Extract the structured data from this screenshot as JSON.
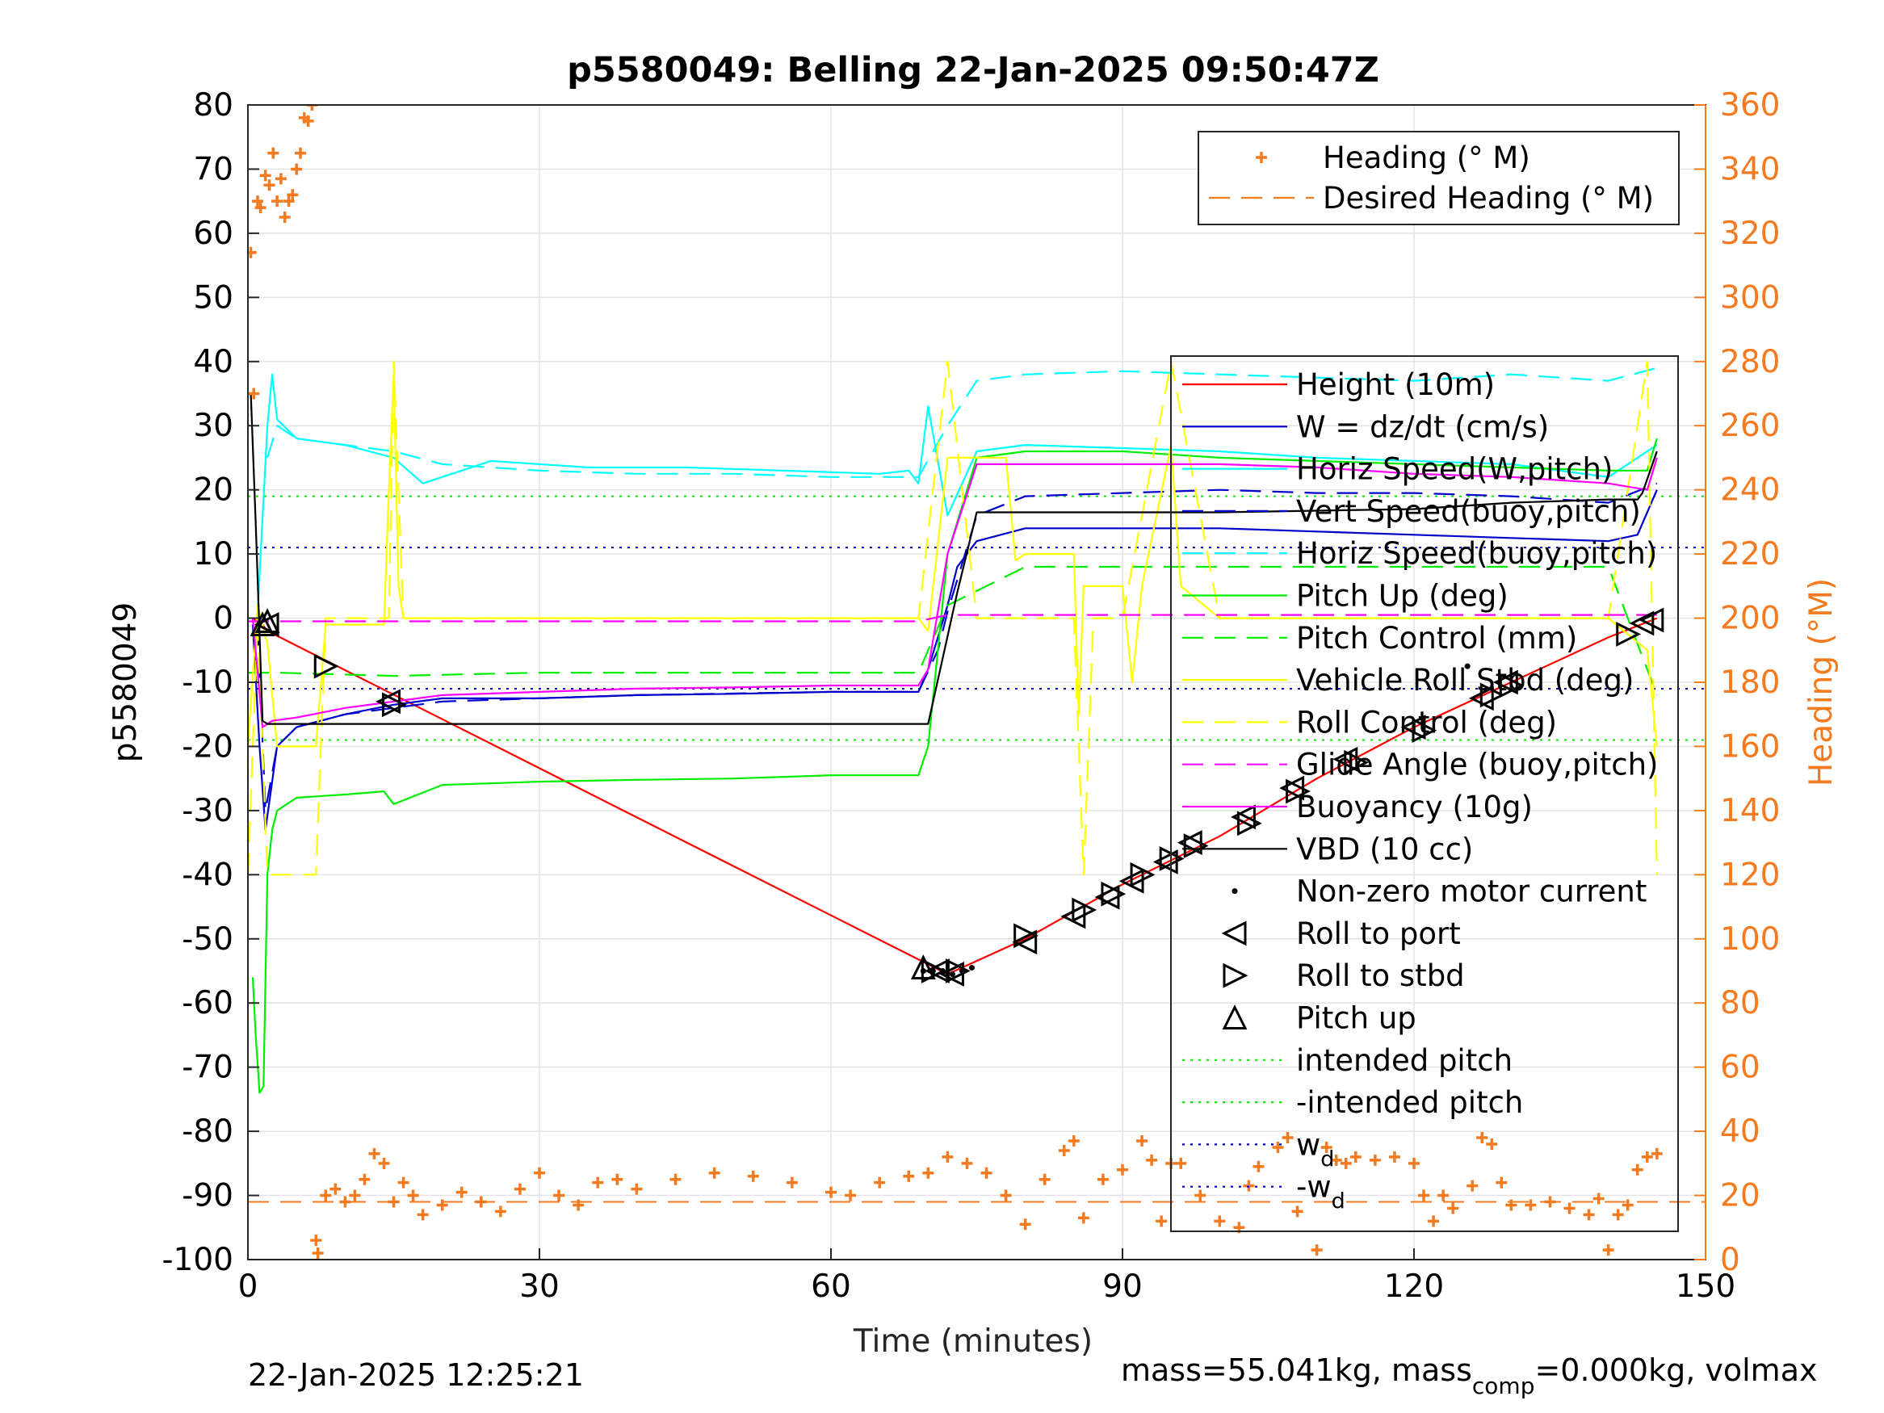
{
  "chart_data": {
    "type": "line",
    "title": "p5580049: Belling 22-Jan-2025 09:50:47Z",
    "xlabel": "Time (minutes)",
    "ylabel": "p5580049",
    "ylabel_right": "Heading (°M)",
    "xlim": [
      0,
      150
    ],
    "ylim": [
      -100,
      80
    ],
    "ylim_right": [
      0,
      360
    ],
    "xticks": [
      0,
      30,
      60,
      90,
      120,
      150
    ],
    "yticks": [
      -100,
      -90,
      -80,
      -70,
      -60,
      -50,
      -40,
      -30,
      -20,
      -10,
      0,
      10,
      20,
      30,
      40,
      50,
      60,
      70,
      80
    ],
    "yticks_right": [
      0,
      20,
      40,
      60,
      80,
      100,
      120,
      140,
      160,
      180,
      200,
      220,
      240,
      260,
      280,
      300,
      320,
      340,
      360
    ],
    "grid": true,
    "footer_left": "22-Jan-2025 12:25:21",
    "footer_right": "mass=55.041kg, mass",
    "footer_right_sub": "comp",
    "footer_right_tail": "=0.000kg, volmax",
    "legend_top": {
      "placement": "top-right",
      "items": [
        {
          "label": "Heading (° M)",
          "color": "#f47a1f",
          "style": "plus"
        },
        {
          "label": "Desired Heading (° M)",
          "color": "#f47a1f",
          "style": "dash"
        }
      ]
    },
    "legend_main": {
      "placement": "right",
      "items": [
        {
          "label": "Height (10m)",
          "color": "#ff0000",
          "style": "solid"
        },
        {
          "label": "W = dz/dt (cm/s)",
          "color": "#0000cc",
          "style": "solid"
        },
        {
          "label": "Horiz Speed(W,pitch)",
          "color": "#00ffff",
          "style": "solid"
        },
        {
          "label": "Vert Speed(buoy,pitch)",
          "color": "#0000cc",
          "style": "dash"
        },
        {
          "label": "Horiz Speed(buoy,pitch)",
          "color": "#00ffff",
          "style": "dash"
        },
        {
          "label": "Pitch Up (deg)",
          "color": "#00ee00",
          "style": "solid"
        },
        {
          "label": "Pitch Control (mm)",
          "color": "#00ee00",
          "style": "dash"
        },
        {
          "label": "Vehicle Roll Stbd (deg)",
          "color": "#ffff00",
          "style": "solid"
        },
        {
          "label": "Roll Control (deg)",
          "color": "#ffff00",
          "style": "dash"
        },
        {
          "label": "Glide Angle (buoy,pitch)",
          "color": "#ff00ff",
          "style": "dash"
        },
        {
          "label": "Buoyancy (10g)",
          "color": "#ff00ff",
          "style": "solid"
        },
        {
          "label": "VBD (10 cc)",
          "color": "#000000",
          "style": "solid"
        },
        {
          "label": "Non-zero motor current",
          "color": "#000000",
          "style": "dot"
        },
        {
          "label": "Roll to port",
          "color": "#000000",
          "style": "tri-left"
        },
        {
          "label": "Roll to stbd",
          "color": "#000000",
          "style": "tri-right"
        },
        {
          "label": "Pitch up",
          "color": "#000000",
          "style": "tri-up"
        },
        {
          "label": "intended pitch",
          "color": "#00ee00",
          "style": "dotted"
        },
        {
          "label": "-intended pitch",
          "color": "#00ee00",
          "style": "dotted"
        },
        {
          "label": "w",
          "sub": "d",
          "color": "#0000cc",
          "style": "dotted"
        },
        {
          "label": "-w",
          "sub": "d",
          "color": "#0000cc",
          "style": "dotted"
        }
      ]
    },
    "series": [
      {
        "name": "Height (10m)",
        "color": "#ff0000",
        "style": "solid",
        "x": [
          0.5,
          1.5,
          2,
          72,
          80,
          90,
          100,
          110,
          120,
          130,
          140,
          145
        ],
        "y": [
          0,
          -1,
          -2,
          -55.5,
          -50,
          -41.5,
          -34,
          -25,
          -17,
          -10,
          -3,
          0
        ]
      },
      {
        "name": "W = dz/dt (cm/s)",
        "color": "#0000cc",
        "style": "solid",
        "x": [
          0.5,
          1.2,
          1.8,
          3,
          5,
          10,
          15,
          20,
          30,
          40,
          50,
          60,
          69,
          70,
          71,
          72,
          73,
          75,
          80,
          90,
          100,
          110,
          120,
          130,
          140,
          143,
          145
        ],
        "y": [
          -1,
          -20,
          -33,
          -20,
          -17,
          -15,
          -13.5,
          -12.5,
          -12.5,
          -12,
          -11.8,
          -11.5,
          -11.5,
          -8,
          -3,
          2,
          8,
          12,
          14,
          14,
          14,
          13.5,
          13,
          12.5,
          12,
          13,
          20
        ]
      },
      {
        "name": "Horiz Speed(W,pitch)",
        "color": "#00ffff",
        "style": "solid",
        "x": [
          1,
          2,
          2.5,
          3,
          5,
          10,
          15,
          18,
          25,
          35,
          45,
          55,
          65,
          68,
          69,
          70,
          72,
          75,
          80,
          90,
          100,
          110,
          120,
          130,
          140,
          145
        ],
        "y": [
          1,
          30,
          38,
          31,
          28,
          27,
          25,
          21,
          24.5,
          23.5,
          23.5,
          23,
          22.5,
          23,
          21,
          33,
          16,
          26,
          27,
          26.5,
          26,
          25,
          24.5,
          24,
          22,
          27
        ]
      },
      {
        "name": "Vert Speed(buoy,pitch)",
        "color": "#0000cc",
        "style": "dash",
        "x": [
          1,
          1.8,
          3,
          5,
          10,
          20,
          40,
          60,
          69,
          71,
          72,
          75,
          80,
          90,
          100,
          110,
          120,
          130,
          140,
          145
        ],
        "y": [
          -1,
          -30,
          -20,
          -17,
          -15,
          -13,
          -12,
          -11.5,
          -11.5,
          -5,
          1,
          16,
          19,
          19.5,
          20,
          19.5,
          19.5,
          19,
          18,
          21
        ]
      },
      {
        "name": "Horiz Speed(buoy,pitch)",
        "color": "#00ffff",
        "style": "dash",
        "x": [
          2,
          3,
          5,
          10,
          15,
          20,
          30,
          40,
          50,
          60,
          69,
          72,
          75,
          80,
          90,
          100,
          110,
          120,
          130,
          140,
          145
        ],
        "y": [
          25,
          30,
          28,
          27,
          26,
          24,
          23,
          22.5,
          22.5,
          22,
          22,
          30,
          37,
          38,
          38.5,
          38,
          37.5,
          37,
          38,
          37,
          39
        ]
      },
      {
        "name": "Pitch Up (deg)",
        "color": "#00ee00",
        "style": "solid",
        "x": [
          0.5,
          0.8,
          1.2,
          1.6,
          2,
          2.5,
          3,
          5,
          10,
          14,
          15,
          20,
          30,
          40,
          50,
          60,
          69,
          70,
          71,
          72,
          74,
          75,
          80,
          90,
          100,
          110,
          120,
          130,
          140,
          144,
          145
        ],
        "y": [
          -56,
          -65,
          -74,
          -73,
          -40,
          -33,
          -30,
          -28,
          -27.5,
          -27,
          -29,
          -26,
          -25.5,
          -25.2,
          -25,
          -24.5,
          -24.5,
          -20,
          -5,
          10,
          20,
          25,
          26,
          26,
          25,
          24.5,
          24,
          23.5,
          23,
          23,
          28
        ]
      },
      {
        "name": "Pitch Control (mm)",
        "color": "#00ee00",
        "style": "dash",
        "x": [
          0,
          3,
          15,
          30,
          60,
          69,
          72,
          80,
          90,
          100,
          110,
          120,
          130,
          140,
          145
        ],
        "y": [
          -8.5,
          -8.5,
          -9,
          -8.5,
          -8.5,
          -8.5,
          2,
          8,
          8,
          8,
          8,
          8,
          8,
          8,
          -12
        ]
      },
      {
        "name": "Vehicle Roll Stbd (deg)",
        "color": "#ffff00",
        "style": "solid",
        "x": [
          0,
          1,
          2,
          3,
          5,
          7,
          8,
          14,
          14.5,
          15,
          15.5,
          16,
          20,
          40,
          60,
          69,
          70,
          72,
          78,
          79,
          80,
          85,
          85.5,
          86,
          90,
          91,
          92,
          95,
          96,
          100,
          105,
          110,
          120,
          130,
          140,
          144,
          145
        ],
        "y": [
          -20,
          2,
          -4,
          -20,
          -20,
          -20,
          -1,
          -1,
          20,
          38,
          5,
          0,
          0,
          0,
          0,
          0,
          -2,
          25,
          25,
          9,
          10,
          10,
          -15,
          5,
          5,
          -10,
          5,
          27,
          5,
          0,
          0,
          0,
          0,
          0,
          0,
          -5,
          -20
        ]
      },
      {
        "name": "Roll Control (deg)",
        "color": "#ffff00",
        "style": "dash",
        "x": [
          0,
          1,
          2,
          3,
          7,
          8,
          14.5,
          15,
          16,
          20,
          60,
          69,
          72,
          75,
          85,
          86,
          87,
          90,
          95,
          100,
          110,
          120,
          130,
          140,
          144,
          145
        ],
        "y": [
          -40,
          0,
          -40,
          -40,
          -40,
          0,
          0,
          40,
          0,
          0,
          0,
          0,
          40,
          0,
          0,
          -40,
          0,
          0,
          40,
          0,
          0,
          0,
          0,
          0,
          40,
          -40
        ]
      },
      {
        "name": "Glide Angle (buoy,pitch)",
        "color": "#ff00ff",
        "style": "dash",
        "x": [
          0,
          30,
          60,
          69,
          72,
          80,
          100,
          120,
          140,
          145
        ],
        "y": [
          -0.5,
          -0.5,
          -0.5,
          -0.5,
          0.5,
          0.5,
          0.5,
          0.5,
          0.5,
          0.5
        ]
      },
      {
        "name": "Buoyancy (10g)",
        "color": "#ff00ff",
        "style": "solid",
        "x": [
          0.5,
          1.5,
          2.5,
          5,
          10,
          20,
          30,
          40,
          50,
          60,
          69,
          70,
          72,
          75,
          80,
          90,
          100,
          110,
          120,
          130,
          140,
          144,
          145
        ],
        "y": [
          0,
          -17,
          -16,
          -15.5,
          -14,
          -12,
          -11.5,
          -11,
          -10.8,
          -10.5,
          -10.5,
          -8,
          10,
          24,
          24,
          24,
          24,
          23.5,
          22.5,
          22,
          21,
          20,
          25
        ]
      },
      {
        "name": "VBD (10 cc)",
        "color": "#000000",
        "style": "solid",
        "x": [
          0.3,
          0.8,
          1.5,
          2,
          20,
          40,
          60,
          69,
          70,
          73,
          75,
          80,
          100,
          120,
          130,
          140,
          143,
          143.5,
          145
        ],
        "y": [
          35,
          15,
          -16,
          -16.5,
          -16.5,
          -16.5,
          -16.5,
          -16.5,
          -16.5,
          4,
          16.5,
          16.5,
          16.5,
          17,
          18,
          18.5,
          18.5,
          19.5,
          26
        ]
      }
    ],
    "wd": 11,
    "intended_pitch": 19,
    "desired_heading": 18,
    "heading": {
      "name": "Heading (° M)",
      "x": [
        0.3,
        0.6,
        1,
        1.3,
        1.8,
        2.2,
        2.6,
        3,
        3.4,
        3.8,
        4.2,
        4.6,
        5,
        5.4,
        5.8,
        6.2,
        6.6,
        7,
        7.2,
        8,
        9,
        10,
        11,
        12,
        13,
        14,
        15,
        16,
        17,
        18,
        20,
        22,
        24,
        26,
        28,
        30,
        32,
        34,
        36,
        38,
        40,
        44,
        48,
        52,
        56,
        60,
        62,
        65,
        68,
        70,
        72,
        74,
        76,
        78,
        80,
        82,
        84,
        85,
        86,
        88,
        90,
        92,
        93,
        94,
        95,
        96,
        98,
        100,
        102,
        103,
        104,
        106,
        107,
        108,
        110,
        111,
        112,
        113,
        114,
        116,
        118,
        120,
        121,
        122,
        123,
        124,
        126,
        127,
        128,
        129,
        130,
        132,
        134,
        136,
        138,
        139,
        140,
        141,
        142,
        143,
        144,
        145
      ],
      "y": [
        314,
        270,
        330,
        328,
        338,
        335,
        345,
        330,
        337,
        325,
        330,
        332,
        340,
        345,
        356,
        355,
        360,
        6,
        2,
        20,
        22,
        18,
        20,
        25,
        33,
        30,
        18,
        24,
        20,
        14,
        17,
        21,
        18,
        15,
        22,
        27,
        20,
        17,
        24,
        25,
        22,
        25,
        27,
        26,
        24,
        21,
        20,
        24,
        26,
        27,
        32,
        30,
        27,
        20,
        11,
        25,
        34,
        37,
        13,
        25,
        28,
        37,
        31,
        12,
        30,
        30,
        20,
        12,
        10,
        23,
        29,
        35,
        38,
        15,
        3,
        35,
        31,
        30,
        32,
        31,
        32,
        30,
        20,
        12,
        20,
        16,
        23,
        38,
        36,
        24,
        17,
        17,
        18,
        16,
        14,
        19,
        3,
        14,
        17,
        28,
        32,
        33
      ]
    },
    "markers": {
      "roll_to_port": {
        "x": [
          2,
          14.5,
          71,
          72.5,
          80,
          85,
          88.5,
          91,
          94.5,
          97,
          102.5,
          107.5,
          113,
          120,
          127,
          129.5,
          143.5,
          144.5
        ],
        "y": [
          -1,
          -13,
          -55,
          -55.5,
          -50.5,
          -46.5,
          -43.5,
          -41,
          -38,
          -35,
          -31,
          -26.5,
          -22,
          -17,
          -12.5,
          -10,
          -0.8,
          -0.3
        ]
      },
      "roll_to_stbd": {
        "x": [
          8,
          15,
          70.5,
          73,
          80,
          86,
          89,
          92,
          95,
          97.5,
          103,
          108,
          114,
          121,
          128,
          130,
          142
        ],
        "y": [
          -7.5,
          -13.5,
          -55,
          -55,
          -49.5,
          -45.5,
          -43,
          -40,
          -37.5,
          -35.5,
          -32,
          -27,
          -22.5,
          -17.5,
          -12,
          -10.5,
          -2.5
        ]
      },
      "pitch_up": {
        "x": [
          1.5,
          2,
          69.5
        ],
        "y": [
          -1,
          -0.5,
          -54.5
        ]
      },
      "motor_current": {
        "x": [
          69.5,
          70.5,
          71.5,
          72.5,
          73.5,
          74.5,
          125.5
        ],
        "y": [
          -55,
          -55,
          -55,
          -55.5,
          -55,
          -54.5,
          -7.5
        ]
      }
    }
  }
}
